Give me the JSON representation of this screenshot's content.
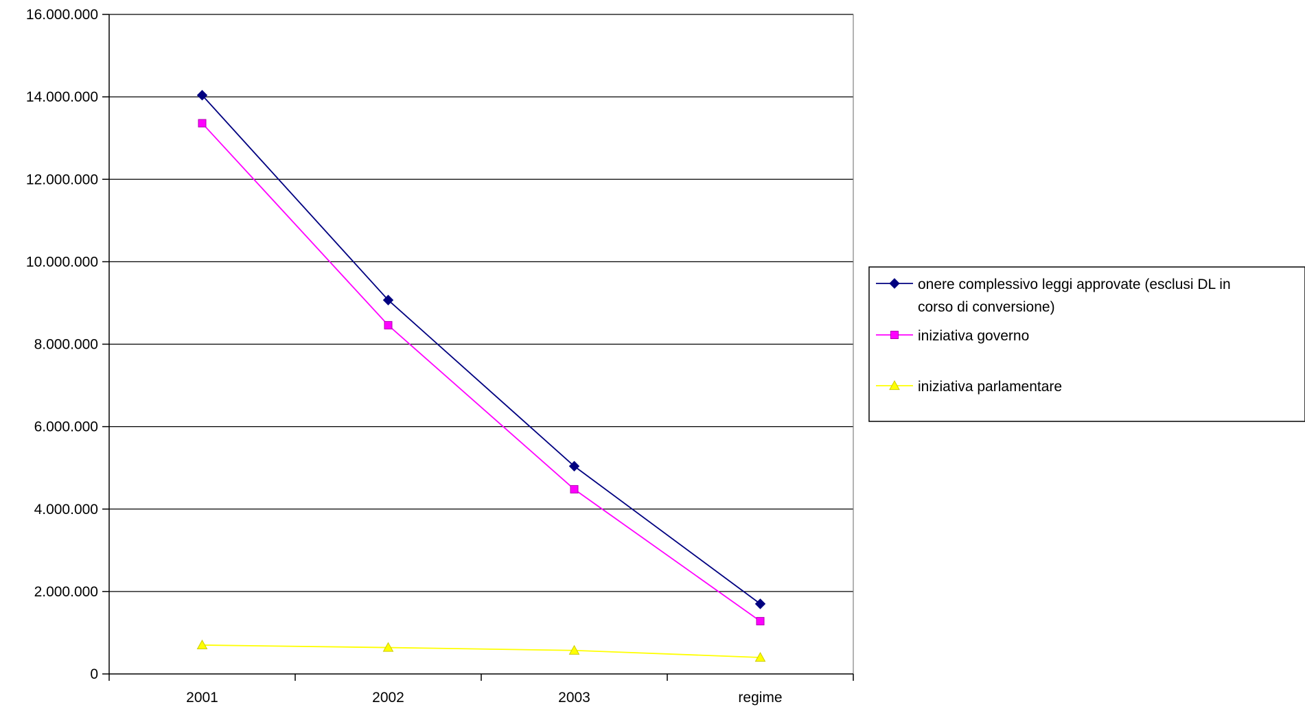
{
  "chart_data": {
    "type": "line",
    "categories": [
      "2001",
      "2002",
      "2003",
      "regime"
    ],
    "ylim": [
      0,
      16000000
    ],
    "yticks": [
      0,
      2000000,
      4000000,
      6000000,
      8000000,
      10000000,
      12000000,
      14000000,
      16000000
    ],
    "ytick_labels": [
      "0",
      "2.000.000",
      "4.000.000",
      "6.000.000",
      "8.000.000",
      "10.000.000",
      "12.000.000",
      "14.000.000",
      "16.000.000"
    ],
    "grid": true,
    "legend_position": "right",
    "series": [
      {
        "name": "onere complessivo leggi approvate (esclusi DL in corso di conversione)",
        "legend_lines": [
          "onere complessivo leggi approvate (esclusi DL in",
          "corso di conversione)"
        ],
        "values": [
          14040000,
          9070000,
          5040000,
          1700000
        ],
        "color": "#000080",
        "marker": "diamond"
      },
      {
        "name": "iniziativa governo",
        "legend_lines": [
          "iniziativa governo"
        ],
        "values": [
          13360000,
          8460000,
          4480000,
          1280000
        ],
        "color": "#ff00ff",
        "marker": "square"
      },
      {
        "name": "iniziativa parlamentare",
        "legend_lines": [
          "iniziativa parlamentare"
        ],
        "values": [
          700000,
          640000,
          570000,
          400000
        ],
        "color": "#ffff00",
        "marker": "triangle"
      }
    ]
  }
}
